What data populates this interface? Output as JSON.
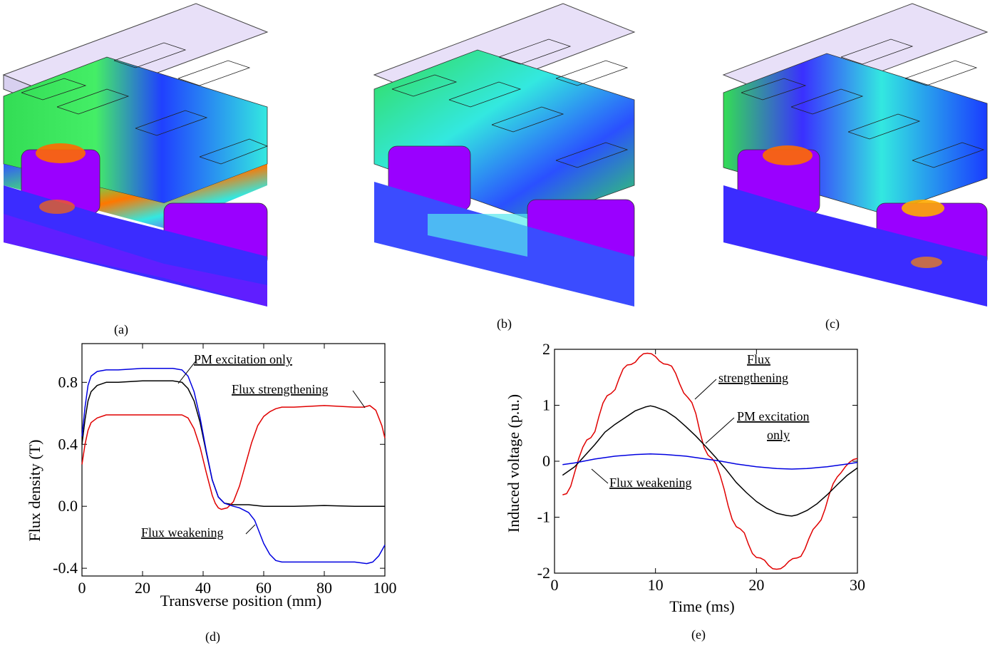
{
  "captions": {
    "a": "(a)",
    "b": "(b)",
    "c": "(c)",
    "d": "(d)",
    "e": "(e)"
  },
  "colors": {
    "pm_only": "#000000",
    "strengthening": "#e00000",
    "weakening": "#0000e0",
    "core_purple": "#9a00ff",
    "field_green": "#33dd55",
    "field_cyan": "#33e8e0",
    "field_blue": "#1a3cff",
    "hot": "#ff5a00"
  },
  "chart_data": [
    {
      "type": "line",
      "xlabel": "Transverse position (mm)",
      "ylabel": "Flux density (T)",
      "xlim": [
        0,
        100
      ],
      "ylim": [
        -0.45,
        1.05
      ],
      "xticks": [
        0,
        20,
        40,
        60,
        80,
        100
      ],
      "yticks": [
        -0.4,
        0.0,
        0.4,
        0.8
      ],
      "ytick_labels": [
        "-0.4",
        "0.0",
        "0.4",
        "0.8"
      ],
      "annotations": [
        {
          "text": "PM excitation only"
        },
        {
          "text": "Flux strengthening"
        },
        {
          "text": "Flux weakening"
        }
      ],
      "series": [
        {
          "name": "PM excitation only",
          "color": "#000000",
          "x": [
            0,
            1,
            2,
            3,
            5,
            8,
            12,
            20,
            30,
            33,
            35,
            37,
            39,
            41,
            43,
            45,
            47,
            50,
            55,
            60,
            70,
            80,
            90,
            100
          ],
          "y": [
            0.4,
            0.56,
            0.68,
            0.74,
            0.78,
            0.8,
            0.8,
            0.81,
            0.81,
            0.8,
            0.76,
            0.68,
            0.54,
            0.35,
            0.17,
            0.06,
            0.02,
            0.01,
            0.01,
            0.0,
            0.0,
            0.005,
            0.0,
            0.0
          ]
        },
        {
          "name": "Flux strengthening",
          "color": "#e00000",
          "x": [
            0,
            1,
            2,
            3,
            5,
            8,
            12,
            20,
            30,
            33,
            35,
            37,
            39,
            41,
            43,
            44,
            45,
            46,
            48,
            50,
            52,
            54,
            56,
            58,
            60,
            62,
            64,
            66,
            70,
            80,
            90,
            93,
            95,
            97,
            99,
            100
          ],
          "y": [
            0.27,
            0.4,
            0.49,
            0.54,
            0.57,
            0.59,
            0.59,
            0.59,
            0.59,
            0.59,
            0.57,
            0.5,
            0.38,
            0.22,
            0.07,
            0.02,
            -0.01,
            -0.02,
            -0.01,
            0.03,
            0.13,
            0.27,
            0.41,
            0.52,
            0.58,
            0.61,
            0.63,
            0.64,
            0.64,
            0.65,
            0.64,
            0.64,
            0.65,
            0.62,
            0.52,
            0.44
          ]
        },
        {
          "name": "Flux weakening",
          "color": "#0000e0",
          "x": [
            0,
            1,
            2,
            3,
            5,
            8,
            12,
            20,
            30,
            33,
            35,
            37,
            39,
            41,
            43,
            45,
            47,
            50,
            52,
            55,
            57,
            58,
            60,
            62,
            64,
            66,
            70,
            80,
            90,
            94,
            96,
            98,
            100
          ],
          "y": [
            0.45,
            0.64,
            0.78,
            0.84,
            0.87,
            0.88,
            0.88,
            0.89,
            0.89,
            0.88,
            0.84,
            0.74,
            0.57,
            0.36,
            0.17,
            0.06,
            0.02,
            0.0,
            -0.01,
            -0.04,
            -0.09,
            -0.14,
            -0.24,
            -0.31,
            -0.35,
            -0.36,
            -0.36,
            -0.36,
            -0.36,
            -0.37,
            -0.36,
            -0.32,
            -0.25
          ]
        }
      ]
    },
    {
      "type": "line",
      "xlabel": "Time (ms)",
      "ylabel": "Induced voltage (p.u.)",
      "xlim": [
        0,
        30
      ],
      "ylim": [
        -2,
        2
      ],
      "xticks": [
        0,
        10,
        20,
        30
      ],
      "yticks": [
        -2,
        -1,
        0,
        1,
        2
      ],
      "ytick_labels": [
        "-2",
        "-1",
        "0",
        "1",
        "2"
      ],
      "annotations": [
        {
          "text": "Flux"
        },
        {
          "text": "strengthening"
        },
        {
          "text": "PM excitation"
        },
        {
          "text": "only"
        },
        {
          "text": "Flux weakening"
        }
      ],
      "series": [
        {
          "name": "Flux strengthening",
          "color": "#e00000",
          "x": [
            0.8,
            1.2,
            1.6,
            2.0,
            2.4,
            2.8,
            3.2,
            3.6,
            4.0,
            4.4,
            4.8,
            5.2,
            5.6,
            6.0,
            6.4,
            6.8,
            7.2,
            7.6,
            8.0,
            8.4,
            8.8,
            9.2,
            9.6,
            10.0,
            10.4,
            10.8,
            11.2,
            11.6,
            12.0,
            12.4,
            12.8,
            13.2,
            13.6,
            14.0,
            14.4,
            14.8,
            15.2,
            15.6,
            16.0,
            16.4,
            16.8,
            17.2,
            17.6,
            18.0,
            18.4,
            18.8,
            19.2,
            19.6,
            20.0,
            20.4,
            20.8,
            21.2,
            21.6,
            22.0,
            22.4,
            22.8,
            23.2,
            23.6,
            24.0,
            24.4,
            24.8,
            25.2,
            25.6,
            26.0,
            26.4,
            26.8,
            27.2,
            27.6,
            28.0,
            28.4,
            28.8,
            29.2,
            29.6,
            30.0
          ],
          "y": [
            -0.6,
            -0.58,
            -0.45,
            -0.2,
            0.05,
            0.25,
            0.38,
            0.42,
            0.53,
            0.8,
            1.04,
            1.17,
            1.21,
            1.28,
            1.48,
            1.65,
            1.72,
            1.73,
            1.77,
            1.86,
            1.92,
            1.93,
            1.92,
            1.87,
            1.79,
            1.74,
            1.73,
            1.7,
            1.57,
            1.38,
            1.22,
            1.14,
            1.05,
            0.85,
            0.53,
            0.25,
            0.11,
            0.05,
            -0.05,
            -0.25,
            -0.5,
            -0.8,
            -1.04,
            -1.17,
            -1.21,
            -1.28,
            -1.48,
            -1.65,
            -1.72,
            -1.73,
            -1.77,
            -1.86,
            -1.92,
            -1.93,
            -1.92,
            -1.87,
            -1.79,
            -1.74,
            -1.73,
            -1.7,
            -1.57,
            -1.38,
            -1.22,
            -1.14,
            -1.05,
            -0.85,
            -0.6,
            -0.4,
            -0.28,
            -0.2,
            -0.1,
            -0.02,
            0.03,
            0.05
          ]
        },
        {
          "name": "PM excitation only",
          "color": "#000000",
          "x": [
            0.8,
            2.0,
            3.0,
            4.0,
            5.0,
            6.0,
            7.0,
            8.0,
            9.0,
            9.5,
            10.0,
            11.0,
            12.0,
            13.0,
            14.0,
            15.0,
            16.0,
            17.0,
            18.0,
            19.0,
            20.0,
            21.0,
            22.0,
            23.0,
            23.5,
            24.0,
            25.0,
            26.0,
            27.0,
            28.0,
            29.0,
            30.0
          ],
          "y": [
            -0.25,
            -0.1,
            0.1,
            0.3,
            0.52,
            0.66,
            0.78,
            0.9,
            0.97,
            0.99,
            0.97,
            0.9,
            0.78,
            0.62,
            0.45,
            0.26,
            0.06,
            -0.15,
            -0.38,
            -0.56,
            -0.72,
            -0.84,
            -0.93,
            -0.97,
            -0.98,
            -0.96,
            -0.88,
            -0.76,
            -0.6,
            -0.42,
            -0.25,
            -0.12
          ]
        },
        {
          "name": "Flux weakening",
          "color": "#0000e0",
          "x": [
            0.8,
            2.0,
            4.0,
            6.0,
            8.0,
            9.5,
            11.0,
            13.0,
            15.0,
            16.5,
            18.0,
            20.0,
            22.0,
            23.5,
            25.0,
            27.0,
            29.0,
            30.0
          ],
          "y": [
            -0.06,
            -0.03,
            0.04,
            0.09,
            0.12,
            0.13,
            0.12,
            0.09,
            0.04,
            0.0,
            -0.05,
            -0.1,
            -0.13,
            -0.14,
            -0.13,
            -0.1,
            -0.05,
            -0.02
          ]
        }
      ]
    }
  ]
}
